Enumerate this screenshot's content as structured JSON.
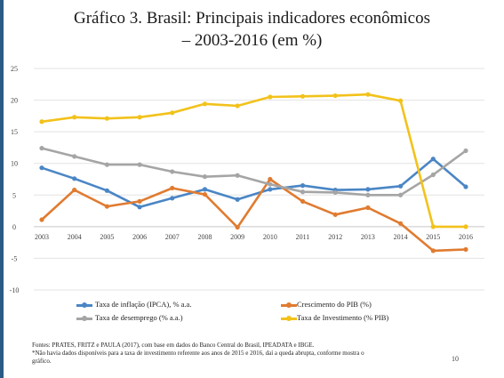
{
  "title": {
    "line1": "Gráfico 3. Brasil: Principais indicadores econômicos",
    "line2": "– 2003-2016 (em %)"
  },
  "chart_data": {
    "type": "line",
    "categories": [
      "2003",
      "2004",
      "2005",
      "2006",
      "2007",
      "2008",
      "2009",
      "2010",
      "2011",
      "2012",
      "2013",
      "2014",
      "2015",
      "2016"
    ],
    "y_ticks": [
      "25",
      "20",
      "15",
      "10",
      "5",
      "0",
      "-5",
      "-10"
    ],
    "ylim": [
      -10,
      25
    ],
    "grid": true,
    "legend_position": "bottom",
    "series": [
      {
        "name": "Taxa de inflação (IPCA), % a.a.",
        "color": "#4a86c5",
        "values": [
          9.3,
          7.6,
          5.7,
          3.1,
          4.5,
          5.9,
          4.3,
          5.9,
          6.5,
          5.8,
          5.9,
          6.4,
          10.7,
          6.3
        ]
      },
      {
        "name": "Crescimento do PIB (%)",
        "color": "#e07b30",
        "values": [
          1.1,
          5.8,
          3.2,
          4.0,
          6.1,
          5.1,
          -0.1,
          7.5,
          4.0,
          1.9,
          3.0,
          0.5,
          -3.8,
          -3.6
        ]
      },
      {
        "name": "Taxa de desemprego (% a.a.)",
        "color": "#a5a5a5",
        "values": [
          12.4,
          11.1,
          9.8,
          9.8,
          8.7,
          7.9,
          8.1,
          6.7,
          5.5,
          5.4,
          5.0,
          5.0,
          8.2,
          12.0
        ]
      },
      {
        "name": "Taxa de Investimento (% PIB)",
        "color": "#f2c21b",
        "values": [
          16.6,
          17.3,
          17.1,
          17.3,
          18.0,
          19.4,
          19.1,
          20.5,
          20.6,
          20.7,
          20.9,
          19.9,
          0,
          0
        ]
      }
    ]
  },
  "notes": {
    "line1": "Fontes: PRATES, FRITZ e PAULA (2017), com base em dados do Banco Central do Brasil, IPEADATA e IBGE.",
    "line2": "*Não havia dados disponíveis para a taxa de investimento referente aos anos de 2015 e 2016, daí a queda abrupta, conforme mostra o",
    "line3": "gráfico."
  },
  "page_number": "10"
}
